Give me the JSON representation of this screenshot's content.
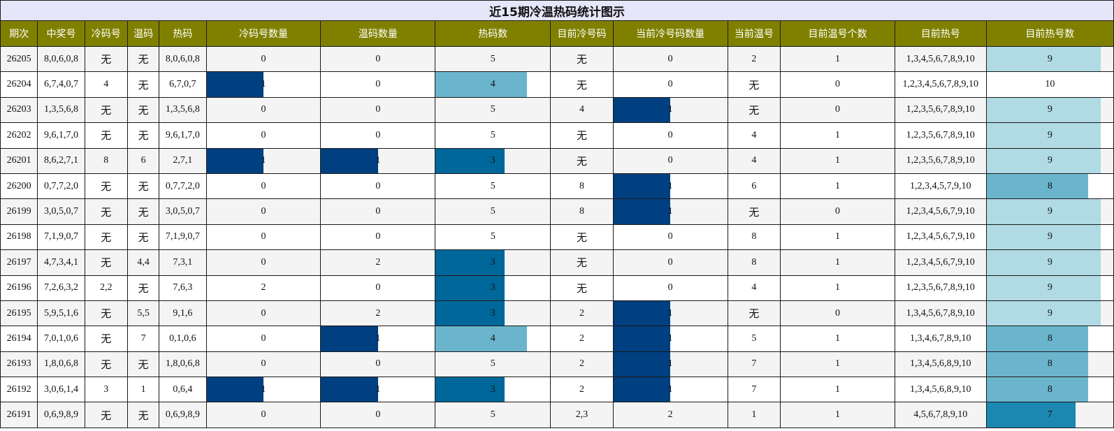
{
  "chart_data": {
    "type": "table",
    "title": "近15期冷温热码统计图示",
    "columns": [
      "期次",
      "中奖号",
      "冷码号",
      "温码",
      "热码",
      "冷码号数量",
      "温码数量",
      "热码数",
      "目前冷号码",
      "当前冷号码数量",
      "当前温号",
      "目前温号个数",
      "目前热号",
      "目前热号数"
    ],
    "rows": [
      [
        "26205",
        "8,0,6,0,8",
        "无",
        "无",
        "8,0,6,0,8",
        "0",
        "0",
        "5",
        "无",
        "0",
        "2",
        "1",
        "1,3,4,5,6,7,8,9,10",
        "9"
      ],
      [
        "26204",
        "6,7,4,0,7",
        "4",
        "无",
        "6,7,0,7",
        "1",
        "0",
        "4",
        "无",
        "0",
        "无",
        "0",
        "1,2,3,4,5,6,7,8,9,10",
        "10"
      ],
      [
        "26203",
        "1,3,5,6,8",
        "无",
        "无",
        "1,3,5,6,8",
        "0",
        "0",
        "5",
        "4",
        "1",
        "无",
        "0",
        "1,2,3,5,6,7,8,9,10",
        "9"
      ],
      [
        "26202",
        "9,6,1,7,0",
        "无",
        "无",
        "9,6,1,7,0",
        "0",
        "0",
        "5",
        "无",
        "0",
        "4",
        "1",
        "1,2,3,5,6,7,8,9,10",
        "9"
      ],
      [
        "26201",
        "8,6,2,7,1",
        "8",
        "6",
        "2,7,1",
        "1",
        "1",
        "3",
        "无",
        "0",
        "4",
        "1",
        "1,2,3,5,6,7,8,9,10",
        "9"
      ],
      [
        "26200",
        "0,7,7,2,0",
        "无",
        "无",
        "0,7,7,2,0",
        "0",
        "0",
        "5",
        "8",
        "1",
        "6",
        "1",
        "1,2,3,4,5,7,9,10",
        "8"
      ],
      [
        "26199",
        "3,0,5,0,7",
        "无",
        "无",
        "3,0,5,0,7",
        "0",
        "0",
        "5",
        "8",
        "1",
        "无",
        "0",
        "1,2,3,4,5,6,7,9,10",
        "9"
      ],
      [
        "26198",
        "7,1,9,0,7",
        "无",
        "无",
        "7,1,9,0,7",
        "0",
        "0",
        "5",
        "无",
        "0",
        "8",
        "1",
        "1,2,3,4,5,6,7,9,10",
        "9"
      ],
      [
        "26197",
        "4,7,3,4,1",
        "无",
        "4,4",
        "7,3,1",
        "0",
        "2",
        "3",
        "无",
        "0",
        "8",
        "1",
        "1,2,3,4,5,6,7,9,10",
        "9"
      ],
      [
        "26196",
        "7,2,6,3,2",
        "2,2",
        "无",
        "7,6,3",
        "2",
        "0",
        "3",
        "无",
        "0",
        "4",
        "1",
        "1,2,3,5,6,7,8,9,10",
        "9"
      ],
      [
        "26195",
        "5,9,5,1,6",
        "无",
        "5,5",
        "9,1,6",
        "0",
        "2",
        "3",
        "2",
        "1",
        "无",
        "0",
        "1,3,4,5,6,7,8,9,10",
        "9"
      ],
      [
        "26194",
        "7,0,1,0,6",
        "无",
        "7",
        "0,1,0,6",
        "0",
        "1",
        "4",
        "2",
        "1",
        "5",
        "1",
        "1,3,4,6,7,8,9,10",
        "8"
      ],
      [
        "26193",
        "1,8,0,6,8",
        "无",
        "无",
        "1,8,0,6,8",
        "0",
        "0",
        "5",
        "2",
        "1",
        "7",
        "1",
        "1,3,4,5,6,8,9,10",
        "8"
      ],
      [
        "26192",
        "3,0,6,1,4",
        "3",
        "1",
        "0,6,4",
        "1",
        "1",
        "3",
        "2",
        "1",
        "7",
        "1",
        "1,3,4,5,6,8,9,10",
        "8"
      ],
      [
        "26191",
        "0,6,9,8,9",
        "无",
        "无",
        "0,6,9,8,9",
        "0",
        "0",
        "5",
        "2,3",
        "2",
        "1",
        "1",
        "4,5,6,7,8,9,10",
        "7"
      ]
    ],
    "bar_columns": {
      "5": {
        "max": 2,
        "color": "#003f80"
      },
      "6": {
        "max": 2,
        "color": "#003f80"
      },
      "7": {
        "max": 5,
        "colors": {
          "3": "#00679a",
          "4": "#6bb5cc"
        }
      },
      "9": {
        "max": 2,
        "color": "#003f80"
      },
      "13": {
        "max": 10,
        "colors": {
          "7": "#1c87b0",
          "8": "#6bb5cc",
          "9": "#b0dae4"
        }
      }
    }
  }
}
